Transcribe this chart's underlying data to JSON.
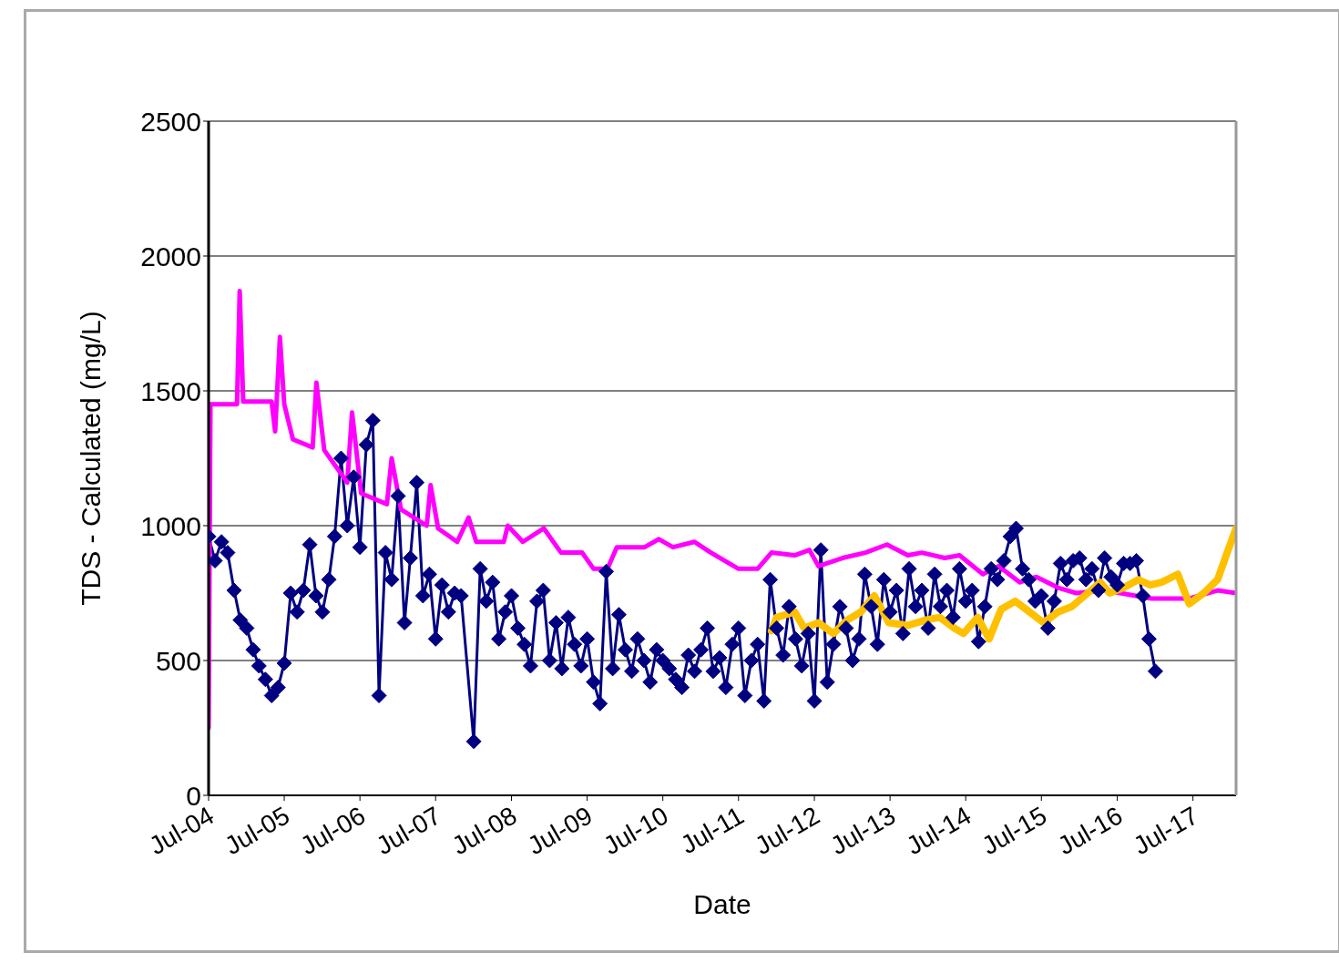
{
  "chart_data": {
    "type": "line",
    "xlabel": "Date",
    "ylabel": "TDS -  Calculated (mg/L)",
    "xlim": [
      "2004-07-01",
      "2018-01-25"
    ],
    "xticks": [
      {
        "value": "2004-07-01",
        "label": "Jul-04"
      },
      {
        "value": "2005-07-01",
        "label": "Jul-05"
      },
      {
        "value": "2006-07-01",
        "label": "Jul-06"
      },
      {
        "value": "2007-07-01",
        "label": "Jul-07"
      },
      {
        "value": "2008-07-01",
        "label": "Jul-08"
      },
      {
        "value": "2009-07-01",
        "label": "Jul-09"
      },
      {
        "value": "2010-07-01",
        "label": "Jul-10"
      },
      {
        "value": "2011-07-01",
        "label": "Jul-11"
      },
      {
        "value": "2012-07-01",
        "label": "Jul-12"
      },
      {
        "value": "2013-07-01",
        "label": "Jul-13"
      },
      {
        "value": "2014-07-01",
        "label": "Jul-14"
      },
      {
        "value": "2015-07-01",
        "label": "Jul-15"
      },
      {
        "value": "2016-07-01",
        "label": "Jul-16"
      },
      {
        "value": "2017-07-01",
        "label": "Jul-17"
      }
    ],
    "ylim": [
      0,
      2500
    ],
    "yticks": [
      0,
      500,
      1000,
      1500,
      2000,
      2500
    ],
    "grid": "y",
    "series": [
      {
        "color": "#000080",
        "marker": "diamond",
        "x": [
          "2004-07",
          "2004-08",
          "2004-09",
          "2004-10",
          "2004-11",
          "2004-12",
          "2005-01",
          "2005-02",
          "2005-03",
          "2005-04",
          "2005-05",
          "2005-06",
          "2005-07",
          "2005-08",
          "2005-09",
          "2005-10",
          "2005-11",
          "2005-12",
          "2006-01",
          "2006-02",
          "2006-03",
          "2006-04",
          "2006-05",
          "2006-06",
          "2006-07",
          "2006-08",
          "2006-09",
          "2006-10",
          "2006-11",
          "2006-12",
          "2007-01",
          "2007-02",
          "2007-03",
          "2007-04",
          "2007-05",
          "2007-06",
          "2007-07",
          "2007-08",
          "2007-09",
          "2007-10",
          "2007-11",
          "2008-01",
          "2008-02",
          "2008-03",
          "2008-04",
          "2008-05",
          "2008-06",
          "2008-07",
          "2008-08",
          "2008-09",
          "2008-10",
          "2008-11",
          "2008-12",
          "2009-01",
          "2009-02",
          "2009-03",
          "2009-04",
          "2009-05",
          "2009-06",
          "2009-07",
          "2009-08",
          "2009-09",
          "2009-10",
          "2009-11",
          "2009-12",
          "2010-01",
          "2010-02",
          "2010-03",
          "2010-04",
          "2010-05",
          "2010-06",
          "2010-07",
          "2010-08",
          "2010-09",
          "2010-10",
          "2010-11",
          "2010-12",
          "2011-01",
          "2011-02",
          "2011-03",
          "2011-04",
          "2011-05",
          "2011-06",
          "2011-07",
          "2011-08",
          "2011-09",
          "2011-10",
          "2011-11",
          "2011-12",
          "2012-01",
          "2012-02",
          "2012-03",
          "2012-04",
          "2012-05",
          "2012-06",
          "2012-07",
          "2012-08",
          "2012-09",
          "2012-10",
          "2012-11",
          "2012-12",
          "2013-01",
          "2013-02",
          "2013-03",
          "2013-04",
          "2013-05",
          "2013-06",
          "2013-07",
          "2013-08",
          "2013-09",
          "2013-10",
          "2013-11",
          "2013-12",
          "2014-01",
          "2014-02",
          "2014-03",
          "2014-04",
          "2014-05",
          "2014-06",
          "2014-07",
          "2014-08",
          "2014-09",
          "2014-10",
          "2014-11",
          "2014-12",
          "2015-01",
          "2015-02",
          "2015-03",
          "2015-04",
          "2015-05",
          "2015-06",
          "2015-07",
          "2015-08",
          "2015-09",
          "2015-10",
          "2015-11",
          "2015-12",
          "2016-01",
          "2016-02",
          "2016-03",
          "2016-04",
          "2016-05",
          "2016-06",
          "2016-07",
          "2016-08",
          "2016-09",
          "2016-10",
          "2016-11",
          "2016-12",
          "2017-01"
        ],
        "values": [
          960,
          870,
          940,
          900,
          760,
          650,
          620,
          540,
          480,
          430,
          370,
          400,
          490,
          750,
          680,
          760,
          930,
          740,
          680,
          800,
          960,
          1250,
          1000,
          1180,
          920,
          1300,
          1390,
          370,
          900,
          800,
          1110,
          640,
          880,
          1160,
          740,
          820,
          580,
          780,
          680,
          750,
          740,
          200,
          840,
          720,
          790,
          580,
          680,
          740,
          620,
          560,
          480,
          720,
          760,
          500,
          640,
          470,
          660,
          560,
          480,
          580,
          420,
          340,
          830,
          470,
          670,
          540,
          460,
          580,
          500,
          420,
          540,
          500,
          470,
          430,
          400,
          520,
          460,
          540,
          620,
          460,
          510,
          400,
          560,
          620,
          370,
          500,
          560,
          350,
          800,
          620,
          520,
          700,
          580,
          480,
          600,
          350,
          910,
          420,
          560,
          700,
          620,
          500,
          580,
          820,
          700,
          560,
          800,
          680,
          760,
          600,
          840,
          700,
          760,
          620,
          820,
          700,
          760,
          660,
          840,
          720,
          760,
          570,
          700,
          840,
          800,
          870,
          960,
          990,
          840,
          800,
          720,
          740,
          620,
          720,
          860,
          800,
          870,
          880,
          800,
          840,
          760,
          880,
          810,
          780,
          860,
          860,
          870,
          740,
          580,
          460
        ]
      },
      {
        "color": "#ff00ff",
        "marker": "none",
        "x": [
          "2004-07-01",
          "2004-07-10",
          "2004-11-15",
          "2004-11-28",
          "2004-12-15",
          "2005-05-01",
          "2005-05-18",
          "2005-06-10",
          "2005-07-01",
          "2005-08-12",
          "2005-11-15",
          "2005-12-03",
          "2006-01-10",
          "2006-05-01",
          "2006-05-24",
          "2006-07-07",
          "2006-11-08",
          "2006-12-01",
          "2007-01-15",
          "2007-05-19",
          "2007-06-07",
          "2007-07-13",
          "2007-10-13",
          "2007-12-07",
          "2008-01-13",
          "2008-05-25",
          "2008-06-13",
          "2008-08-25",
          "2008-12-04",
          "2009-02-25",
          "2009-06-07",
          "2009-08-01",
          "2009-10-07",
          "2009-11-21",
          "2010-04-04",
          "2010-06-12",
          "2010-08-19",
          "2010-12-01",
          "2011-02-18",
          "2011-07-01",
          "2011-10-01",
          "2011-12-07",
          "2012-03-28",
          "2012-06-07",
          "2012-07-21",
          "2012-11-13",
          "2013-03-04",
          "2013-06-16",
          "2013-09-25",
          "2013-12-01",
          "2014-03-22",
          "2014-06-01",
          "2014-09-22",
          "2014-12-07",
          "2015-03-19",
          "2015-06-07",
          "2015-09-19",
          "2015-12-16",
          "2016-05-01",
          "2016-12-13",
          "2017-06-13",
          "2017-10-28",
          "2018-01-25"
        ],
        "values": [
          250,
          1450,
          1450,
          1870,
          1460,
          1460,
          1350,
          1700,
          1450,
          1320,
          1290,
          1530,
          1280,
          1160,
          1420,
          1120,
          1080,
          1250,
          1060,
          1000,
          1150,
          990,
          940,
          1030,
          940,
          940,
          1000,
          940,
          990,
          900,
          900,
          840,
          840,
          920,
          920,
          950,
          920,
          940,
          900,
          840,
          840,
          900,
          890,
          910,
          850,
          880,
          900,
          930,
          890,
          900,
          880,
          890,
          820,
          850,
          790,
          810,
          770,
          750,
          760,
          730,
          730,
          760,
          750
        ]
      },
      {
        "color": "#ffc000",
        "marker": "none",
        "x": [
          "2011-12-07",
          "2012-01-01",
          "2012-03-28",
          "2012-05-13",
          "2012-07-21",
          "2012-10-01",
          "2012-12-07",
          "2013-02-10",
          "2013-04-16",
          "2013-06-25",
          "2013-09-25",
          "2013-12-19",
          "2014-02-25",
          "2014-05-07",
          "2014-06-20",
          "2014-08-28",
          "2014-10-22",
          "2014-12-19",
          "2015-02-25",
          "2015-05-05",
          "2015-07-12",
          "2015-09-19",
          "2015-11-25",
          "2016-02-25",
          "2016-04-10",
          "2016-05-25",
          "2016-08-01",
          "2016-10-10",
          "2016-12-07",
          "2017-01-31",
          "2017-04-19",
          "2017-06-13",
          "2017-08-22",
          "2017-10-28",
          "2017-12-13",
          "2018-01-25"
        ],
        "values": [
          610,
          660,
          680,
          620,
          640,
          600,
          650,
          680,
          740,
          640,
          630,
          650,
          660,
          620,
          600,
          660,
          580,
          690,
          720,
          680,
          640,
          680,
          700,
          760,
          790,
          750,
          770,
          800,
          780,
          790,
          820,
          710,
          750,
          800,
          900,
          990
        ]
      }
    ]
  }
}
